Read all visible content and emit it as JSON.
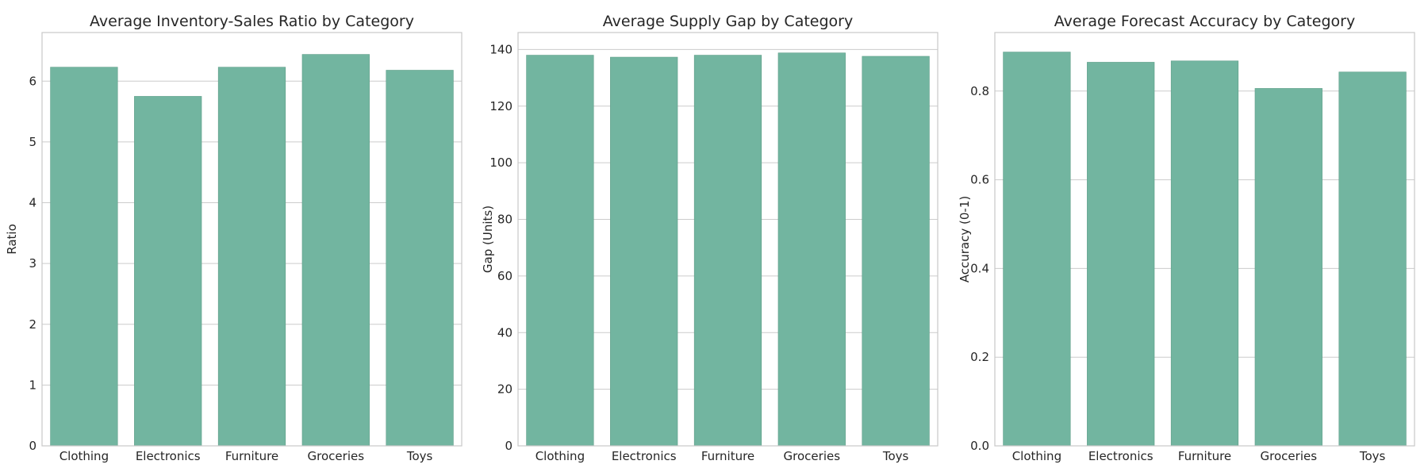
{
  "palette": {
    "bar_color": "#72b5a0"
  },
  "chart_data": [
    {
      "type": "bar",
      "title": "Average Inventory-Sales Ratio by Category",
      "xlabel": "",
      "ylabel": "Ratio",
      "categories": [
        "Clothing",
        "Electronics",
        "Furniture",
        "Groceries",
        "Toys"
      ],
      "values": [
        6.23,
        5.75,
        6.23,
        6.44,
        6.18
      ],
      "ylim": [
        0,
        6.8
      ],
      "yticks": [
        0,
        1,
        2,
        3,
        4,
        5,
        6
      ],
      "ytick_labels": [
        "0",
        "1",
        "2",
        "3",
        "4",
        "5",
        "6"
      ],
      "grid": true
    },
    {
      "type": "bar",
      "title": "Average Supply Gap by Category",
      "xlabel": "",
      "ylabel": "Gap (Units)",
      "categories": [
        "Clothing",
        "Electronics",
        "Furniture",
        "Groceries",
        "Toys"
      ],
      "values": [
        138.0,
        137.3,
        138.0,
        138.8,
        137.6
      ],
      "ylim": [
        0,
        146
      ],
      "yticks": [
        0,
        20,
        40,
        60,
        80,
        100,
        120,
        140
      ],
      "ytick_labels": [
        "0",
        "20",
        "40",
        "60",
        "80",
        "100",
        "120",
        "140"
      ],
      "grid": true
    },
    {
      "type": "bar",
      "title": "Average Forecast Accuracy by Category",
      "xlabel": "",
      "ylabel": "Accuracy (0-1)",
      "categories": [
        "Clothing",
        "Electronics",
        "Furniture",
        "Groceries",
        "Toys"
      ],
      "values": [
        0.888,
        0.865,
        0.868,
        0.806,
        0.843
      ],
      "ylim": [
        0,
        0.932
      ],
      "yticks": [
        0,
        0.2,
        0.4,
        0.6,
        0.8
      ],
      "ytick_labels": [
        "0.0",
        "0.2",
        "0.4",
        "0.6",
        "0.8"
      ],
      "grid": true
    }
  ]
}
